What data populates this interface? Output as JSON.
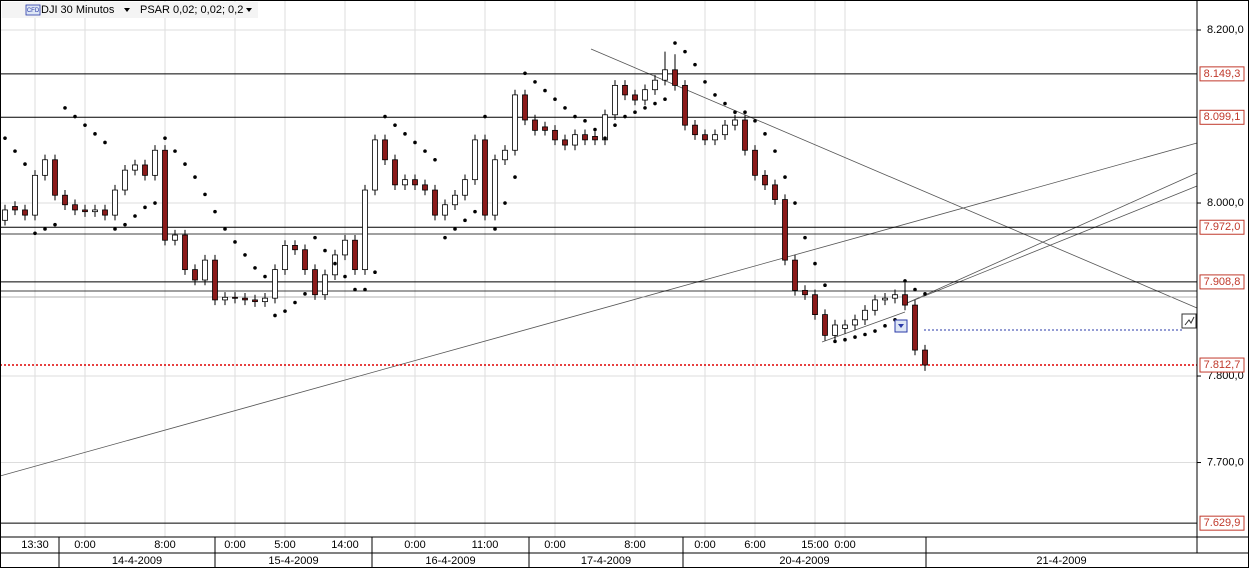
{
  "chart_data": {
    "type": "candlestick",
    "symbol_badge": "CFD",
    "title": "DJI 30 Minutos",
    "indicator": "PSAR 0,02; 0,02; 0,2",
    "up_color": "#ffffff",
    "down_color": "#8b1a1a",
    "psar_color": "#000000",
    "grid": true,
    "ylim": [
      7613.9,
      8234.7
    ],
    "yticks": [
      {
        "value": 8200,
        "label": "8.200,0"
      },
      {
        "value": 8000,
        "label": "8.000,0"
      },
      {
        "value": 7800,
        "label": "7.800,0"
      },
      {
        "value": 7700,
        "label": "7.700,0"
      }
    ],
    "levels": [
      {
        "value": 8149.3,
        "label": "8.149,3"
      },
      {
        "value": 8099.1,
        "label": "8.099,1"
      },
      {
        "value": 7972.0,
        "label": "7.972,0"
      },
      {
        "value": 7908.8,
        "label": "7.908,8"
      },
      {
        "value": 7629.9,
        "label": "7.629,9"
      }
    ],
    "last_price": {
      "value": 7812.7,
      "label": "7.812,7"
    },
    "categories": [
      null,
      null,
      null,
      "13:30",
      null,
      null,
      null,
      null,
      "0:00",
      null,
      null,
      null,
      null,
      null,
      null,
      null,
      "8:00",
      null,
      null,
      null,
      null,
      null,
      null,
      "0:00",
      null,
      null,
      null,
      null,
      "5:00",
      null,
      null,
      null,
      null,
      null,
      "14:00",
      null,
      null,
      null,
      null,
      null,
      null,
      "0:00",
      null,
      null,
      null,
      null,
      null,
      null,
      "11:00",
      null,
      null,
      null,
      null,
      null,
      null,
      "0:00",
      null,
      null,
      null,
      null,
      null,
      null,
      null,
      "8:00",
      null,
      null,
      null,
      null,
      null,
      null,
      "0:00",
      null,
      null,
      null,
      null,
      "6:00",
      null,
      null,
      null,
      null,
      null,
      "15:00",
      null,
      null,
      "0:00",
      null,
      null,
      null,
      null,
      null,
      null,
      null,
      null
    ],
    "dates": [
      "14-4-2009",
      "15-4-2009",
      "16-4-2009",
      "17-4-2009",
      "20-4-2009",
      "21-4-2009"
    ],
    "ohlc": [
      [
        7980,
        7998,
        7974,
        7992
      ],
      [
        7996,
        8002,
        7986,
        7992
      ],
      [
        7992,
        7998,
        7980,
        7986
      ],
      [
        7986,
        8038,
        7980,
        8032
      ],
      [
        8032,
        8056,
        8026,
        8050
      ],
      [
        8050,
        8056,
        8003,
        8009
      ],
      [
        8009,
        8015,
        7992,
        7998
      ],
      [
        7998,
        8004,
        7986,
        7992
      ],
      [
        7992,
        7998,
        7984,
        7990
      ],
      [
        7990,
        7998,
        7984,
        7992
      ],
      [
        7992,
        7998,
        7980,
        7986
      ],
      [
        7986,
        8021,
        7980,
        8015
      ],
      [
        8015,
        8044,
        8009,
        8038
      ],
      [
        8038,
        8050,
        8032,
        8044
      ],
      [
        8044,
        8050,
        8026,
        8032
      ],
      [
        8032,
        8067,
        8026,
        8061
      ],
      [
        8061,
        8067,
        7951,
        7957
      ],
      [
        7957,
        7969,
        7951,
        7963
      ],
      [
        7963,
        7969,
        7917,
        7923
      ],
      [
        7923,
        7929,
        7905,
        7911
      ],
      [
        7911,
        7940,
        7905,
        7934
      ],
      [
        7934,
        7940,
        7882,
        7888
      ],
      [
        7888,
        7897,
        7882,
        7891
      ],
      [
        7891,
        7897,
        7884,
        7890
      ],
      [
        7890,
        7896,
        7882,
        7888
      ],
      [
        7888,
        7894,
        7880,
        7886
      ],
      [
        7886,
        7896,
        7880,
        7890
      ],
      [
        7890,
        7929,
        7884,
        7923
      ],
      [
        7923,
        7957,
        7917,
        7951
      ],
      [
        7951,
        7957,
        7940,
        7946
      ],
      [
        7946,
        7952,
        7917,
        7923
      ],
      [
        7923,
        7929,
        7888,
        7894
      ],
      [
        7894,
        7923,
        7888,
        7917
      ],
      [
        7917,
        7946,
        7911,
        7940
      ],
      [
        7940,
        7963,
        7934,
        7957
      ],
      [
        7957,
        7963,
        7917,
        7923
      ],
      [
        7923,
        8021,
        7917,
        8015
      ],
      [
        8015,
        8079,
        8009,
        8073
      ],
      [
        8073,
        8079,
        8044,
        8050
      ],
      [
        8050,
        8056,
        8015,
        8021
      ],
      [
        8021,
        8033,
        8015,
        8027
      ],
      [
        8027,
        8033,
        8015,
        8021
      ],
      [
        8021,
        8027,
        8009,
        8015
      ],
      [
        8015,
        8021,
        7980,
        7986
      ],
      [
        7986,
        8004,
        7980,
        7998
      ],
      [
        7998,
        8015,
        7992,
        8009
      ],
      [
        8009,
        8033,
        8003,
        8027
      ],
      [
        8027,
        8079,
        8021,
        8073
      ],
      [
        8073,
        8079,
        7980,
        7986
      ],
      [
        7986,
        8056,
        7980,
        8050
      ],
      [
        8050,
        8067,
        8044,
        8061
      ],
      [
        8061,
        8131,
        8055,
        8125
      ],
      [
        8125,
        8131,
        8090,
        8096
      ],
      [
        8096,
        8102,
        8078,
        8084
      ],
      [
        8088,
        8094,
        8078,
        8084
      ],
      [
        8084,
        8090,
        8067,
        8073
      ],
      [
        8073,
        8079,
        8061,
        8067
      ],
      [
        8067,
        8085,
        8061,
        8079
      ],
      [
        8079,
        8085,
        8067,
        8073
      ],
      [
        8077,
        8083,
        8067,
        8073
      ],
      [
        8073,
        8108,
        8067,
        8102
      ],
      [
        8102,
        8142,
        8096,
        8136
      ],
      [
        8136,
        8142,
        8119,
        8125
      ],
      [
        8125,
        8131,
        8113,
        8119
      ],
      [
        8119,
        8137,
        8113,
        8131
      ],
      [
        8131,
        8148,
        8125,
        8142
      ],
      [
        8142,
        8175,
        8136,
        8154
      ],
      [
        8154,
        8172,
        8130,
        8136
      ],
      [
        8136,
        8142,
        8084,
        8090
      ],
      [
        8090,
        8096,
        8073,
        8079
      ],
      [
        8079,
        8085,
        8067,
        8073
      ],
      [
        8073,
        8085,
        8067,
        8079
      ],
      [
        8079,
        8096,
        8073,
        8090
      ],
      [
        8090,
        8102,
        8084,
        8096
      ],
      [
        8096,
        8102,
        8055,
        8061
      ],
      [
        8061,
        8067,
        8026,
        8032
      ],
      [
        8032,
        8038,
        8015,
        8021
      ],
      [
        8021,
        8027,
        7998,
        8004
      ],
      [
        8004,
        8010,
        7928,
        7934
      ],
      [
        7934,
        7940,
        7893,
        7899
      ],
      [
        7899,
        7905,
        7888,
        7894
      ],
      [
        7894,
        7900,
        7865,
        7871
      ],
      [
        7871,
        7877,
        7841,
        7847
      ],
      [
        7847,
        7865,
        7841,
        7859
      ],
      [
        7855,
        7865,
        7849,
        7859
      ],
      [
        7859,
        7871,
        7853,
        7865
      ],
      [
        7865,
        7882,
        7859,
        7876
      ],
      [
        7876,
        7894,
        7870,
        7888
      ],
      [
        7888,
        7896,
        7882,
        7890
      ],
      [
        7890,
        7900,
        7884,
        7894
      ],
      [
        7894,
        7908,
        7876,
        7882
      ],
      [
        7882,
        7888,
        7824,
        7830
      ],
      [
        7830,
        7836,
        7806,
        7812.7
      ]
    ],
    "psar": [
      8075,
      8060,
      8045,
      7965,
      7970,
      7975,
      8110,
      8100,
      8090,
      8080,
      8070,
      7970,
      7975,
      7985,
      7995,
      8000,
      8075,
      8060,
      8045,
      8030,
      8010,
      7990,
      7970,
      7955,
      7940,
      7925,
      7915,
      7870,
      7875,
      7885,
      7895,
      7960,
      7945,
      7930,
      7915,
      7900,
      7900,
      7920,
      8100,
      8090,
      8080,
      8070,
      8060,
      8050,
      7960,
      7970,
      7980,
      7990,
      8100,
      7970,
      8000,
      8030,
      8150,
      8140,
      8130,
      8120,
      8110,
      8100,
      8095,
      8085,
      8075,
      8090,
      8100,
      8105,
      8110,
      8115,
      8120,
      8185,
      8175,
      8160,
      8140,
      8125,
      8115,
      8105,
      8105,
      8095,
      8080,
      8060,
      8030,
      8000,
      7960,
      7930,
      7905,
      7840,
      7842,
      7845,
      7848,
      7852,
      7858,
      7865,
      7910,
      7900,
      7895
    ]
  }
}
